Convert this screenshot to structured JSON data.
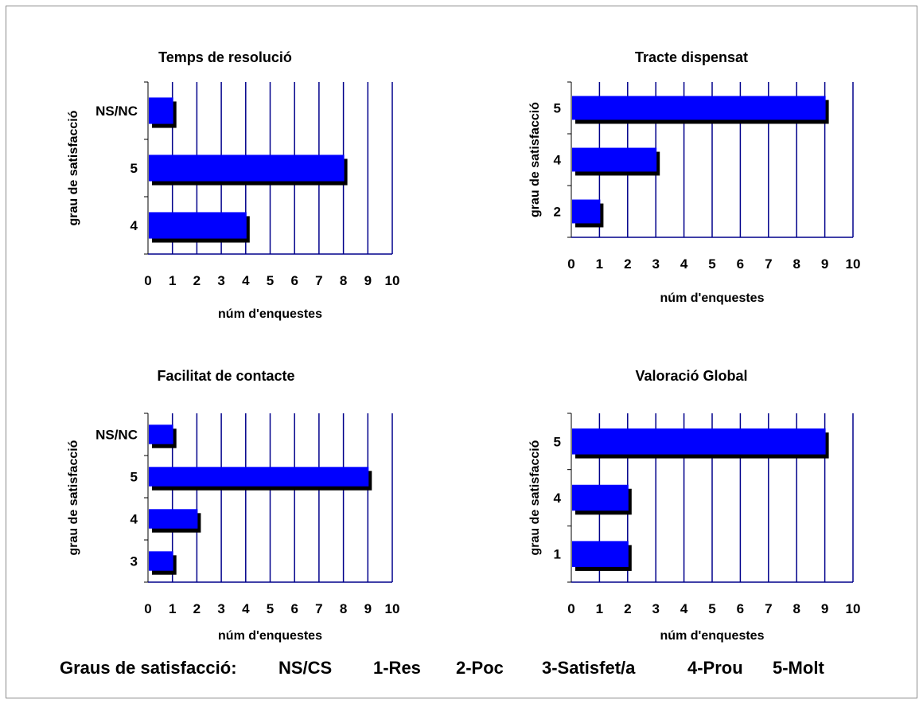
{
  "chart_data": [
    {
      "type": "bar",
      "orientation": "horizontal",
      "title": "Temps de resolució",
      "xlabel": "núm d'enquestes",
      "ylabel": "grau de satisfacció",
      "categories": [
        "4",
        "5",
        "NS/NC"
      ],
      "values": [
        4,
        8,
        1
      ],
      "xlim": [
        0,
        10
      ],
      "xticks": [
        "0",
        "1",
        "2",
        "3",
        "4",
        "5",
        "6",
        "7",
        "8",
        "9",
        "10"
      ],
      "grid": "vertical",
      "legend": "none",
      "colors": {
        "bar": "#0000ff",
        "shadow": "#000000",
        "grid": "#00008b"
      }
    },
    {
      "type": "bar",
      "orientation": "horizontal",
      "title": "Tracte dispensat",
      "xlabel": "núm d'enquestes",
      "ylabel": "grau de satisfacció",
      "categories": [
        "2",
        "4",
        "5"
      ],
      "values": [
        1,
        3,
        9
      ],
      "xlim": [
        0,
        10
      ],
      "xticks": [
        "0",
        "1",
        "2",
        "3",
        "4",
        "5",
        "6",
        "7",
        "8",
        "9",
        "10"
      ],
      "grid": "vertical",
      "legend": "none",
      "colors": {
        "bar": "#0000ff",
        "shadow": "#000000",
        "grid": "#00008b"
      }
    },
    {
      "type": "bar",
      "orientation": "horizontal",
      "title": "Facilitat de contacte",
      "xlabel": "núm d'enquestes",
      "ylabel": "grau de satisfacció",
      "categories": [
        "3",
        "4",
        "5",
        "NS/NC"
      ],
      "values": [
        1,
        2,
        9,
        1
      ],
      "xlim": [
        0,
        10
      ],
      "xticks": [
        "0",
        "1",
        "2",
        "3",
        "4",
        "5",
        "6",
        "7",
        "8",
        "9",
        "10"
      ],
      "grid": "vertical",
      "legend": "none",
      "colors": {
        "bar": "#0000ff",
        "shadow": "#000000",
        "grid": "#00008b"
      }
    },
    {
      "type": "bar",
      "orientation": "horizontal",
      "title": "Valoració Global",
      "xlabel": "núm d'enquestes",
      "ylabel": "grau de satisfacció",
      "categories": [
        "1",
        "4",
        "5"
      ],
      "values": [
        2,
        2,
        9
      ],
      "xlim": [
        0,
        10
      ],
      "xticks": [
        "0",
        "1",
        "2",
        "3",
        "4",
        "5",
        "6",
        "7",
        "8",
        "9",
        "10"
      ],
      "grid": "vertical",
      "legend": "none",
      "colors": {
        "bar": "#0000ff",
        "shadow": "#000000",
        "grid": "#00008b"
      }
    }
  ],
  "footer": {
    "label": "Graus de satisfacció:",
    "items": [
      "NS/CS",
      "1-Res",
      "2-Poc",
      "3-Satisfet/a",
      "4-Prou",
      "5-Molt"
    ]
  }
}
